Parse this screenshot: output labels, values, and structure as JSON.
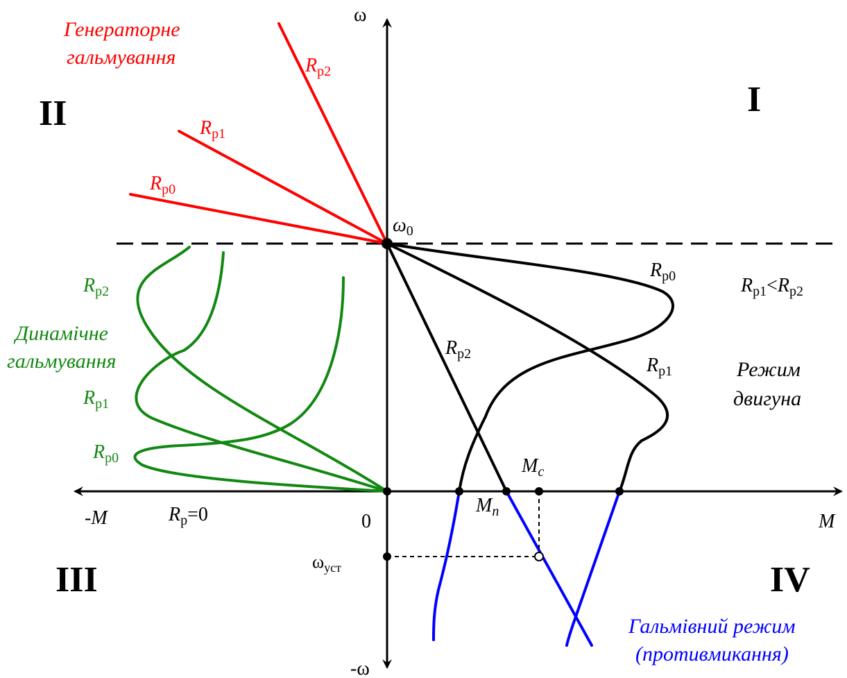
{
  "colors": {
    "axis": "#000000",
    "generator": "#ff0000",
    "dynamic": "#118811",
    "motor": "#000000",
    "counter": "#0000ff"
  },
  "axes": {
    "omega": "ω",
    "neg_omega": "-ω",
    "neg_m": "-M",
    "m": "M",
    "zero": "0",
    "omega0_sym": "ω",
    "omega0_sub": "0"
  },
  "quadrants": {
    "q1": "I",
    "q2": "II",
    "q3": "III",
    "q4": "IV"
  },
  "generator_braking": {
    "title_line1": "Генераторне",
    "title_line2": "гальмування",
    "labels": [
      {
        "sym": "R",
        "sub": "р2"
      },
      {
        "sym": "R",
        "sub": "р1"
      },
      {
        "sym": "R",
        "sub": "р0"
      }
    ]
  },
  "dynamic_braking": {
    "title_line1": "Динамічне",
    "title_line2": "гальмування",
    "labels": [
      {
        "sym": "R",
        "sub": "р2"
      },
      {
        "sym": "R",
        "sub": "р1"
      },
      {
        "sym": "R",
        "sub": "р0"
      }
    ],
    "zero_sym": "R",
    "zero_sub": "р",
    "zero_rest": "=0"
  },
  "motor_mode": {
    "title_line1": "Режим",
    "title_line2": "двигуна",
    "labels": [
      {
        "sym": "R",
        "sub": "р0"
      },
      {
        "sym": "R",
        "sub": "р1"
      },
      {
        "sym": "R",
        "sub": "р2"
      }
    ],
    "relation": {
      "a_sym": "R",
      "a_sub": "р1",
      "op": "<",
      "b_sym": "R",
      "b_sub": "р2"
    }
  },
  "counter_switching": {
    "title_line1": "Гальмівний режим",
    "title_line2": "(противмикання)"
  },
  "points": {
    "mc_sym": "M",
    "mc_sub": "c",
    "mn_sym": "M",
    "mn_sub": "n",
    "omega_ust_sym": "ω",
    "omega_ust_sub": "уст"
  }
}
